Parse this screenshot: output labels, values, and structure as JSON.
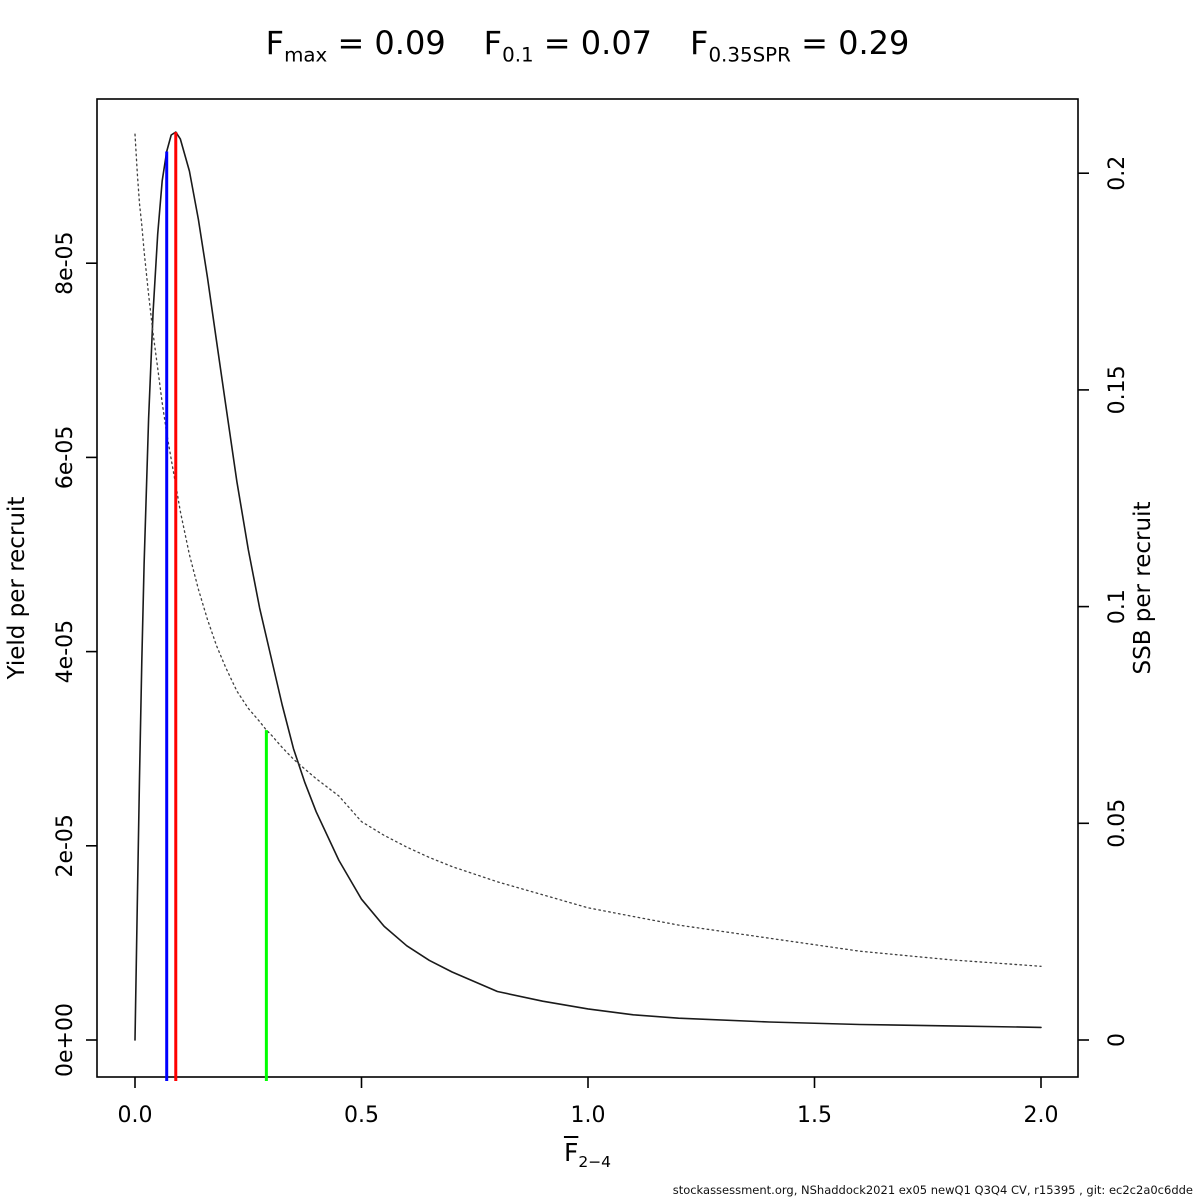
{
  "header": {
    "title_parts": [
      {
        "base": "F",
        "sub": "max",
        "value": "0.09"
      },
      {
        "base": "F",
        "sub": "0.1",
        "value": "0.07"
      },
      {
        "base": "F",
        "sub": "0.35SPR",
        "value": "0.29"
      }
    ],
    "equals_sign": "="
  },
  "footer": {
    "text": "stockassessment.org, NShaddock2021 ex05 newQ1 Q3Q4 CV, r15395 , git: ec2c2a0c6dde"
  },
  "chart_data": {
    "type": "line",
    "title": "Fmax = 0.09   F0.1 = 0.07   F0.35SPR = 0.29",
    "grid": false,
    "legend": false,
    "x_axis": {
      "label_base": "F",
      "label_overbar": true,
      "label_sub": "2−4",
      "range": [
        0,
        2
      ],
      "ticks": [
        {
          "v": 0,
          "label": "0.0"
        },
        {
          "v": 0.5,
          "label": "0.5"
        },
        {
          "v": 1,
          "label": "1.0"
        },
        {
          "v": 1.5,
          "label": "1.5"
        },
        {
          "v": 2,
          "label": "2.0"
        }
      ]
    },
    "y_left_axis": {
      "label": "Yield per recruit",
      "range": [
        0,
        9.7e-05
      ],
      "ticks": [
        {
          "v": 0,
          "label": "0e+00"
        },
        {
          "v": 2e-05,
          "label": "2e-05"
        },
        {
          "v": 4e-05,
          "label": "4e-05"
        },
        {
          "v": 6e-05,
          "label": "6e-05"
        },
        {
          "v": 8e-05,
          "label": "8e-05"
        }
      ]
    },
    "y_right_axis": {
      "label": "SSB per recruit",
      "range": [
        0,
        0.217
      ],
      "ticks": [
        {
          "v": 0,
          "label": "0"
        },
        {
          "v": 0.05,
          "label": "0.05"
        },
        {
          "v": 0.1,
          "label": "0.1"
        },
        {
          "v": 0.15,
          "label": "0.15"
        },
        {
          "v": 0.2,
          "label": "0.2"
        }
      ]
    },
    "series": [
      {
        "name": "yield-per-recruit",
        "axis": "left",
        "style": "solid",
        "color": "#1a1a1a",
        "x": [
          0,
          0.005,
          0.01,
          0.015,
          0.02,
          0.03,
          0.04,
          0.05,
          0.06,
          0.07,
          0.08,
          0.09,
          0.1,
          0.12,
          0.14,
          0.16,
          0.18,
          0.2,
          0.225,
          0.25,
          0.275,
          0.3,
          0.325,
          0.35,
          0.375,
          0.4,
          0.45,
          0.5,
          0.55,
          0.6,
          0.65,
          0.7,
          0.8,
          0.9,
          1.0,
          1.1,
          1.2,
          1.4,
          1.6,
          1.8,
          2.0
        ],
        "y": [
          0,
          1.4e-05,
          2.7e-05,
          3.9e-05,
          4.9e-05,
          6.4e-05,
          7.5e-05,
          8.3e-05,
          8.85e-05,
          9.15e-05,
          9.32e-05,
          9.35e-05,
          9.28e-05,
          8.95e-05,
          8.45e-05,
          7.85e-05,
          7.2e-05,
          6.55e-05,
          5.75e-05,
          5.05e-05,
          4.45e-05,
          3.95e-05,
          3.45e-05,
          3e-05,
          2.65e-05,
          2.35e-05,
          1.85e-05,
          1.45e-05,
          1.17e-05,
          9.7e-06,
          8.2e-06,
          7e-06,
          5e-06,
          4e-06,
          3.2e-06,
          2.6e-06,
          2.25e-06,
          1.85e-06,
          1.6e-06,
          1.45e-06,
          1.3e-06
        ]
      },
      {
        "name": "ssb-per-recruit",
        "axis": "right",
        "style": "dotted",
        "color": "#404040",
        "x": [
          0,
          0.005,
          0.01,
          0.015,
          0.02,
          0.03,
          0.04,
          0.05,
          0.06,
          0.07,
          0.08,
          0.09,
          0.1,
          0.12,
          0.14,
          0.16,
          0.18,
          0.2,
          0.225,
          0.25,
          0.275,
          0.29,
          0.3,
          0.325,
          0.35,
          0.375,
          0.4,
          0.45,
          0.5,
          0.55,
          0.6,
          0.65,
          0.7,
          0.8,
          0.9,
          1.0,
          1.1,
          1.2,
          1.4,
          1.6,
          1.8,
          2.0
        ],
        "y": [
          0.209,
          0.2,
          0.193,
          0.188,
          0.182,
          0.172,
          0.163,
          0.155,
          0.147,
          0.14,
          0.134,
          0.128,
          0.122,
          0.112,
          0.104,
          0.097,
          0.091,
          0.086,
          0.0805,
          0.0765,
          0.0735,
          0.0715,
          0.0705,
          0.0675,
          0.0648,
          0.0625,
          0.0603,
          0.0563,
          0.0504,
          0.0472,
          0.0445,
          0.0421,
          0.04,
          0.0365,
          0.0335,
          0.0305,
          0.0285,
          0.0265,
          0.0235,
          0.0205,
          0.0185,
          0.017
        ]
      }
    ],
    "reference_lines": [
      {
        "name": "F-0.1-line",
        "x": 0.07,
        "axis": "left",
        "top_value": 9.15e-05,
        "color": "#0000ff"
      },
      {
        "name": "F-max-line",
        "x": 0.09,
        "axis": "left",
        "top_value": 9.35e-05,
        "color": "#ff0000"
      },
      {
        "name": "F-0.35SPR-line",
        "x": 0.29,
        "axis": "right",
        "top_value": 0.0715,
        "color": "#00ff00"
      }
    ]
  }
}
